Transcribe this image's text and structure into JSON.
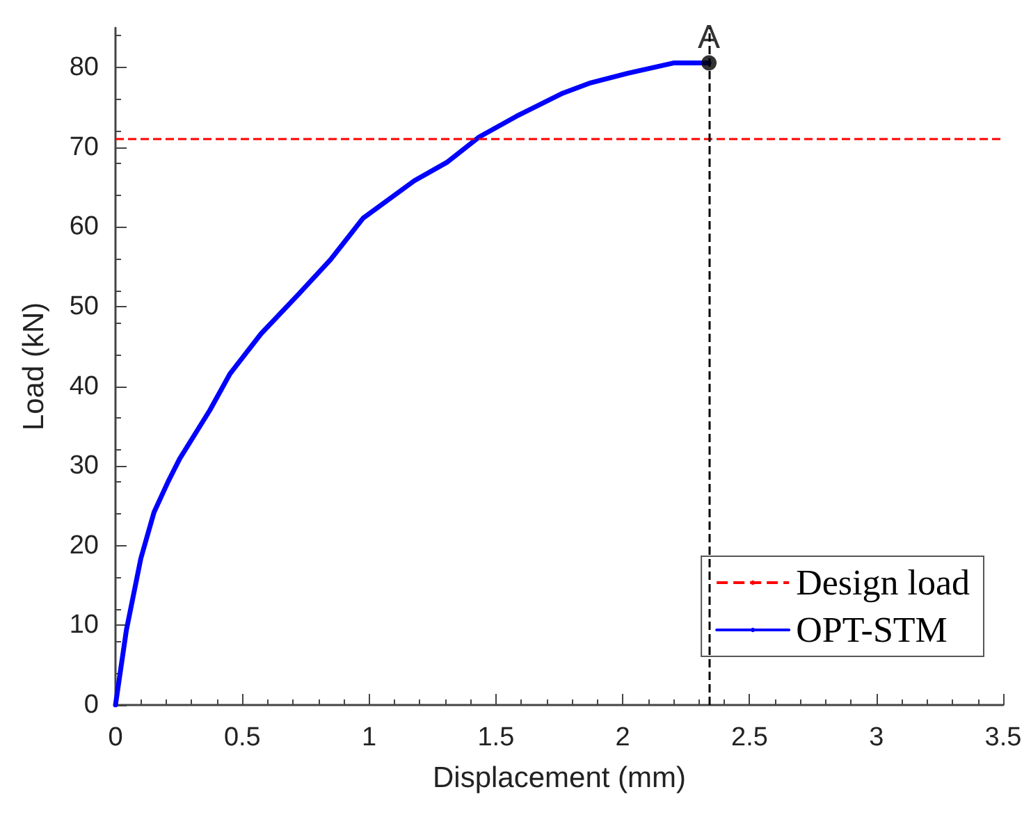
{
  "chart_data": {
    "type": "line",
    "xlabel": "Displacement (mm)",
    "ylabel": "Load (kN)",
    "xlim": [
      0,
      3.5
    ],
    "xticks": [
      0,
      0.5,
      1,
      1.5,
      2,
      2.5,
      3,
      3.5
    ],
    "ylim": [
      0,
      85
    ],
    "yticks": [
      0,
      10,
      20,
      30,
      40,
      50,
      60,
      70,
      80
    ],
    "grid": false,
    "legend": "bottom right",
    "marker": "none",
    "line_style": "solid",
    "series": [
      {
        "name": "OPT-STM",
        "color": "#0000ff",
        "x": [
          0,
          0.043,
          0.1,
          0.152,
          0.207,
          0.253,
          0.372,
          0.452,
          0.574,
          0.72,
          0.848,
          0.976,
          1.178,
          1.306,
          1.434,
          1.581,
          1.764,
          1.874,
          2.02,
          2.203,
          2.34
        ],
        "values": [
          0,
          9.4,
          18.4,
          24.2,
          28,
          30.9,
          37,
          41.6,
          46.6,
          51.5,
          55.9,
          61.1,
          65.8,
          68.1,
          71.3,
          73.9,
          76.8,
          78.1,
          79.3,
          80.6,
          80.6
        ]
      },
      {
        "type": "scatter",
        "marker": "circle",
        "color": "#000000",
        "x": [
          2.34
        ],
        "values": [
          80.6
        ]
      }
    ],
    "ref_lines": [
      {
        "axis": "y",
        "value": 71.1,
        "label": "Design load",
        "color": "#ff0000",
        "line_style": "dashed"
      },
      {
        "axis": "x",
        "value": 2.34,
        "color": "#000000",
        "line_style": "dashed"
      }
    ],
    "annotations": [
      {
        "text": "A",
        "x": 2.34,
        "y": 80.6
      }
    ]
  }
}
